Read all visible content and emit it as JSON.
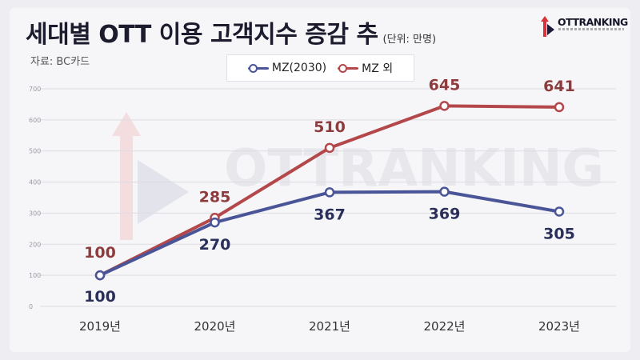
{
  "header": {
    "title": "세대별 OTT 이용 고객지수 증감 추",
    "unit": "(단위: 만명)",
    "source": "자료: BC카드"
  },
  "brand": {
    "logo_text": "OTTRANKING",
    "watermark": "OTTRANKING"
  },
  "colors": {
    "mz": "#4a5597",
    "non_mz": "#b3474a",
    "mz_label": "#2a2f5a",
    "non_mz_label": "#8e3b3d"
  },
  "chart_data": {
    "type": "line",
    "categories": [
      "2019년",
      "2020년",
      "2021년",
      "2022년",
      "2023년"
    ],
    "series": [
      {
        "name": "MZ(2030)",
        "values": [
          100,
          270,
          367,
          369,
          305
        ]
      },
      {
        "name": "MZ 외",
        "values": [
          100,
          285,
          510,
          645,
          641
        ]
      }
    ],
    "ylim": [
      0,
      700
    ],
    "yticks": [
      0,
      100,
      200,
      300,
      400,
      500,
      600,
      700
    ],
    "grid": true,
    "legend": "top-center"
  }
}
